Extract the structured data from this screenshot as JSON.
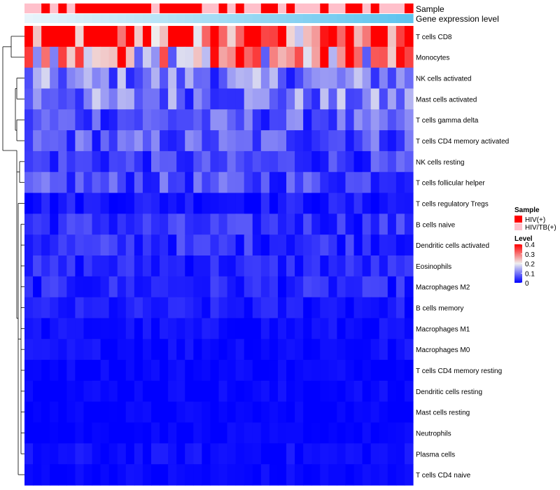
{
  "chart_data": {
    "type": "heatmap",
    "title": "",
    "annotation_rows": [
      {
        "name": "Sample",
        "label": "Sample"
      },
      {
        "name": "Gene expression level",
        "label": "Gene expression level"
      }
    ],
    "columns": 46,
    "sample_groups": [
      "HIV/TB(+)",
      "HIV/TB(+)",
      "HIV(+)",
      "HIV/TB(+)",
      "HIV(+)",
      "HIV/TB(+)",
      "HIV(+)",
      "HIV(+)",
      "HIV(+)",
      "HIV(+)",
      "HIV(+)",
      "HIV(+)",
      "HIV(+)",
      "HIV(+)",
      "HIV(+)",
      "HIV/TB(+)",
      "HIV(+)",
      "HIV(+)",
      "HIV(+)",
      "HIV(+)",
      "HIV(+)",
      "HIV/TB(+)",
      "HIV/TB(+)",
      "HIV(+)",
      "HIV/TB(+)",
      "HIV(+)",
      "HIV/TB(+)",
      "HIV/TB(+)",
      "HIV(+)",
      "HIV(+)",
      "HIV/TB(+)",
      "HIV(+)",
      "HIV/TB(+)",
      "HIV/TB(+)",
      "HIV/TB(+)",
      "HIV(+)",
      "HIV/TB(+)",
      "HIV/TB(+)",
      "HIV(+)",
      "HIV(+)",
      "HIV/TB(+)",
      "HIV(+)",
      "HIV/TB(+)",
      "HIV/TB(+)",
      "HIV/TB(+)",
      "HIV(+)"
    ],
    "rows": [
      "T cells CD8",
      "Monocytes",
      "NK cells activated",
      "Mast cells activated",
      "T cells gamma delta",
      "T cells CD4 memory activated",
      "NK cells resting",
      "T cells follicular helper",
      "T cells regulatory  Tregs",
      "B cells naive",
      "Dendritic cells activated",
      "Eosinophils",
      "Macrophages M2",
      "B cells memory",
      "Macrophages M1",
      "Macrophages M0",
      "T cells CD4 memory resting",
      "Dendritic cells resting",
      "Mast cells resting",
      "Neutrophils",
      "Plasma cells",
      "T cells CD4 naive"
    ],
    "row_mean_values": [
      0.33,
      0.27,
      0.1,
      0.1,
      0.07,
      0.07,
      0.05,
      0.06,
      0.02,
      0.04,
      0.04,
      0.03,
      0.03,
      0.02,
      0.01,
      0.01,
      0.005,
      0.005,
      0.002,
      0.002,
      0.01,
      0.005
    ],
    "legend": {
      "sample": {
        "title": "Sample",
        "entries": [
          {
            "label": "HIV(+)",
            "color": "#ff0000"
          },
          {
            "label": "HIV/TB(+)",
            "color": "#ffc0cb"
          }
        ]
      },
      "level": {
        "title": "Level",
        "ticks": [
          "0.4",
          "0.3",
          "0.2",
          "0.1",
          "0"
        ],
        "tick_values": [
          0.4,
          0.3,
          0.2,
          0.1,
          0
        ],
        "range": [
          0,
          0.4
        ]
      }
    },
    "colors": {
      "low": "#0000ff",
      "mid": "#eeeeee",
      "high": "#ff0000",
      "hiv": "#ff0000",
      "hivtb": "#ffc0cb",
      "expr_light": "#e8f4fb",
      "expr_dark": "#5ec3ee"
    }
  }
}
